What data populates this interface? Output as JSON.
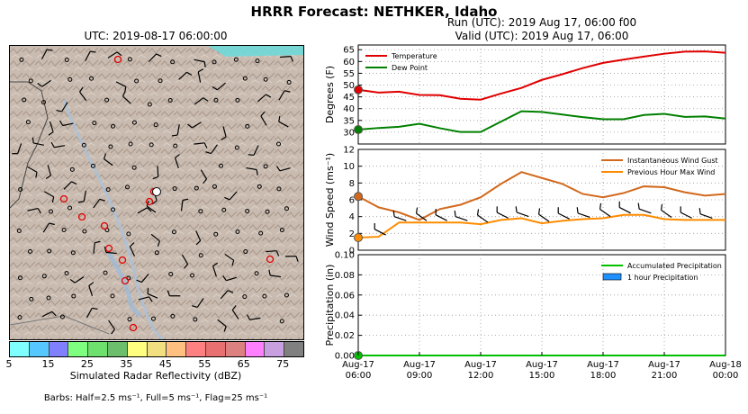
{
  "title": "HRRR Forecast: NETHKER, Idaho",
  "map": {
    "title": "UTC: 2019-08-17 06:00:00",
    "colorbar_label": "Simulated Radar Reflectivity (dBZ)",
    "colorbar_ticks": [
      "5",
      "15",
      "25",
      "35",
      "45",
      "55",
      "65",
      "75"
    ],
    "colorbar_colors": [
      "#7fffff",
      "#56c8ff",
      "#8080ff",
      "#7fff7f",
      "#6de06d",
      "#6cbd6c",
      "#ffff80",
      "#f2e080",
      "#ffc080",
      "#ff8080",
      "#e87070",
      "#dc8080",
      "#ff80ff",
      "#c8a0e0",
      "#808080"
    ],
    "barb_note": "Barbs: Half=2.5 ms⁻¹, Full=5 ms⁻¹, Flag=25 ms⁻¹"
  },
  "run_text": "Run (UTC): 2019 Aug 17, 06:00 f00",
  "valid_text": "Valid (UTC): 2019 Aug 17, 06:00",
  "chart_data": [
    {
      "type": "line",
      "ylabel": "Degrees (F)",
      "ylim": [
        25,
        67
      ],
      "yticks": [
        30,
        35,
        40,
        45,
        50,
        55,
        60,
        65
      ],
      "x": [
        0,
        1,
        2,
        3,
        4,
        5,
        6,
        7,
        8,
        9,
        10,
        11,
        12,
        13,
        14,
        15,
        16,
        17,
        18
      ],
      "series": [
        {
          "name": "Temperature",
          "color": "#e00000",
          "values": [
            48,
            46.8,
            47.2,
            45.8,
            45.7,
            44.2,
            43.8,
            46.4,
            48.8,
            52.2,
            54.6,
            57.2,
            59.4,
            60.8,
            62.1,
            63.3,
            64.2,
            64.3,
            63.7
          ]
        },
        {
          "name": "Dew Point",
          "color": "#008000",
          "values": [
            31.1,
            31.8,
            32.3,
            33.6,
            31.7,
            30.1,
            30.1,
            34.5,
            38.9,
            38.6,
            37.5,
            36.4,
            35.5,
            35.5,
            37.3,
            37.8,
            36.5,
            36.7,
            35.8
          ]
        }
      ],
      "legend": "top-left",
      "grid": true
    },
    {
      "type": "line",
      "ylabel": "Wind Speed (ms⁻¹)",
      "ylim": [
        0,
        12
      ],
      "yticks": [
        0,
        2,
        4,
        6,
        8,
        10,
        12
      ],
      "x": [
        0,
        1,
        2,
        3,
        4,
        5,
        6,
        7,
        8,
        9,
        10,
        11,
        12,
        13,
        14,
        15,
        16,
        17,
        18
      ],
      "series": [
        {
          "name": "Instantaneous Wind Gust",
          "color": "#d2691e",
          "values": [
            6.4,
            5.1,
            4.5,
            3.6,
            4.9,
            5.4,
            6.3,
            7.9,
            9.3,
            8.6,
            7.9,
            6.7,
            6.3,
            6.8,
            7.6,
            7.5,
            6.9,
            6.5,
            6.7
          ]
        },
        {
          "name": "Previous Hour Max Wind",
          "color": "#ff8c00",
          "values": [
            1.5,
            1.6,
            3.3,
            3.3,
            3.3,
            3.3,
            3.1,
            3.6,
            3.8,
            3.2,
            3.5,
            3.7,
            3.8,
            4.2,
            4.2,
            3.7,
            3.6,
            3.6,
            3.6
          ]
        }
      ],
      "legend": "top-right",
      "grid": true
    },
    {
      "type": "line",
      "ylabel": "Precipitation (in)",
      "ylim": [
        0,
        0.1
      ],
      "yticks": [
        "0.00",
        "0.02",
        "0.04",
        "0.06",
        "0.08",
        "0.10"
      ],
      "x": [
        0,
        1,
        2,
        3,
        4,
        5,
        6,
        7,
        8,
        9,
        10,
        11,
        12,
        13,
        14,
        15,
        16,
        17,
        18
      ],
      "series": [
        {
          "name": "Accumulated Precipitation",
          "color": "#00c000",
          "values": [
            0,
            0,
            0,
            0,
            0,
            0,
            0,
            0,
            0,
            0,
            0,
            0,
            0,
            0,
            0,
            0,
            0,
            0,
            0
          ]
        },
        {
          "name": "1 hour Precipitation",
          "color": "#1e90ff",
          "style": "bar",
          "values": [
            0,
            0,
            0,
            0,
            0,
            0,
            0,
            0,
            0,
            0,
            0,
            0,
            0,
            0,
            0,
            0,
            0,
            0,
            0
          ]
        }
      ],
      "xtick_labels": [
        [
          "Aug-17",
          "06:00"
        ],
        [
          "Aug-17",
          "09:00"
        ],
        [
          "Aug-17",
          "12:00"
        ],
        [
          "Aug-17",
          "15:00"
        ],
        [
          "Aug-17",
          "18:00"
        ],
        [
          "Aug-17",
          "21:00"
        ],
        [
          "Aug-18",
          "00:00"
        ]
      ],
      "legend": "top-right",
      "grid": true
    }
  ]
}
